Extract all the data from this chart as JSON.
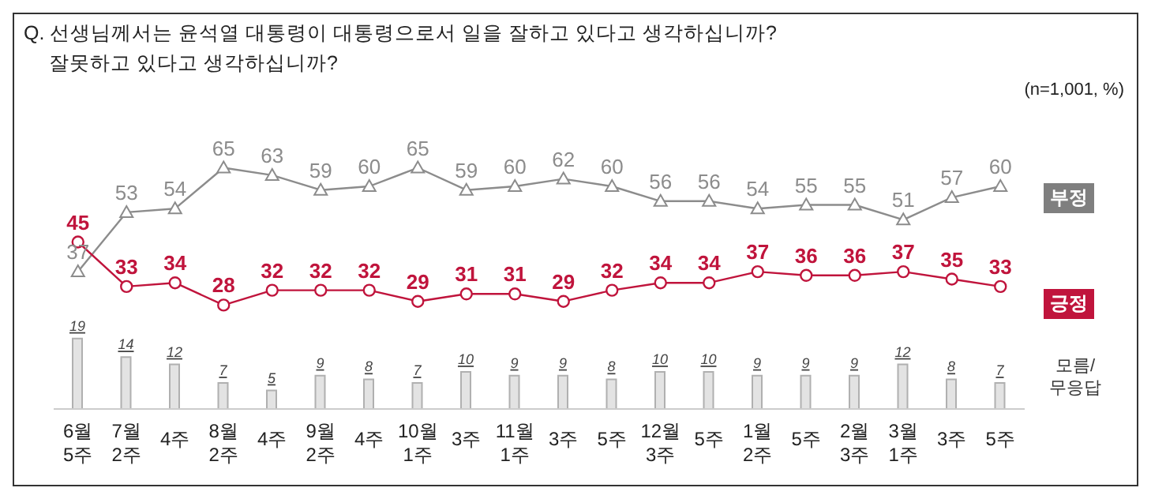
{
  "chart_data": {
    "type": "line",
    "title": "Q. 선생님께서는 윤석열 대통령이 대통령으로서 일을 잘하고 있다고 생각하십니까?\n잘못하고 있다고 생각하십니까?",
    "subtitle": "(n=1,001, %)",
    "categories": [
      "6월 5주",
      "7월 2주",
      "4주",
      "8월 2주",
      "4주",
      "9월 2주",
      "4주",
      "10월 1주",
      "3주",
      "11월 1주",
      "3주",
      "5주",
      "12월 3주",
      "5주",
      "1월 2주",
      "5주",
      "2월 3주",
      "3월 1주",
      "3주",
      "5주"
    ],
    "series": [
      {
        "name": "부정",
        "color": "#8c8c8c",
        "marker": "triangle",
        "values": [
          37,
          53,
          54,
          65,
          63,
          59,
          60,
          65,
          59,
          60,
          62,
          60,
          56,
          56,
          54,
          55,
          55,
          51,
          57,
          60
        ]
      },
      {
        "name": "긍정",
        "color": "#c0143c",
        "marker": "circle",
        "values": [
          45,
          33,
          34,
          28,
          32,
          32,
          32,
          29,
          31,
          31,
          29,
          32,
          34,
          34,
          37,
          36,
          36,
          37,
          35,
          33
        ]
      },
      {
        "name": "모름/무응답",
        "type": "bar",
        "color": "#e3e3e3",
        "values": [
          19,
          14,
          12,
          7,
          5,
          9,
          8,
          7,
          10,
          9,
          9,
          8,
          10,
          10,
          9,
          9,
          9,
          12,
          8,
          7
        ]
      }
    ],
    "data_labels": true,
    "legend": "right"
  }
}
